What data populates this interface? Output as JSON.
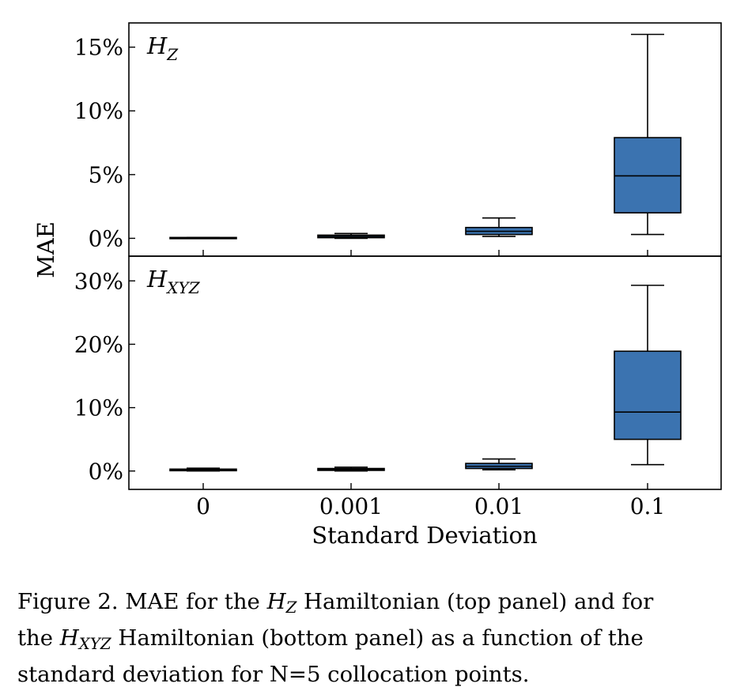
{
  "chart_data": [
    {
      "type": "box",
      "panel_label": "H",
      "panel_label_sub": "Z",
      "xlabel": "Standard Deviation",
      "ylabel": "MAE",
      "categories": [
        "0",
        "0.001",
        "0.01",
        "0.1"
      ],
      "yticks": [
        0,
        5,
        10,
        15
      ],
      "ytick_labels": [
        "0%",
        "5%",
        "10%",
        "15%"
      ],
      "ylim": [
        -1.4,
        16.9
      ],
      "box_color": "#3b73b0",
      "boxes": [
        {
          "whislo": 0.0,
          "q1": 0.0,
          "med": 0.02,
          "q3": 0.04,
          "whishi": 0.07
        },
        {
          "whislo": 0.0,
          "q1": 0.05,
          "med": 0.15,
          "q3": 0.25,
          "whishi": 0.38
        },
        {
          "whislo": 0.15,
          "q1": 0.3,
          "med": 0.55,
          "q3": 0.85,
          "whishi": 1.6
        },
        {
          "whislo": 0.3,
          "q1": 2.0,
          "med": 4.9,
          "q3": 7.9,
          "whishi": 16.0
        }
      ]
    },
    {
      "type": "box",
      "panel_label": "H",
      "panel_label_sub": "XYZ",
      "xlabel": "Standard Deviation",
      "ylabel": "MAE",
      "categories": [
        "0",
        "0.001",
        "0.01",
        "0.1"
      ],
      "yticks": [
        0,
        10,
        20,
        30
      ],
      "ytick_labels": [
        "0%",
        "10%",
        "20%",
        "30%"
      ],
      "ylim": [
        -2.9,
        33.9
      ],
      "box_color": "#3b73b0",
      "boxes": [
        {
          "whislo": 0.0,
          "q1": 0.05,
          "med": 0.15,
          "q3": 0.3,
          "whishi": 0.45
        },
        {
          "whislo": 0.0,
          "q1": 0.1,
          "med": 0.25,
          "q3": 0.4,
          "whishi": 0.6
        },
        {
          "whislo": 0.2,
          "q1": 0.4,
          "med": 0.75,
          "q3": 1.2,
          "whishi": 1.9
        },
        {
          "whislo": 1.0,
          "q1": 5.0,
          "med": 9.3,
          "q3": 18.9,
          "whishi": 29.3
        }
      ]
    }
  ],
  "caption": {
    "line1_a": "Figure 2.  MAE for the ",
    "line1_var": "H",
    "line1_sub": "Z",
    "line1_b": " Hamiltonian (top panel) and for",
    "line2_a": "the ",
    "line2_var": "H",
    "line2_sub": "XYZ",
    "line2_b": " Hamiltonian (bottom panel) as a function of the",
    "line3": "standard deviation for N=5 collocation points."
  }
}
